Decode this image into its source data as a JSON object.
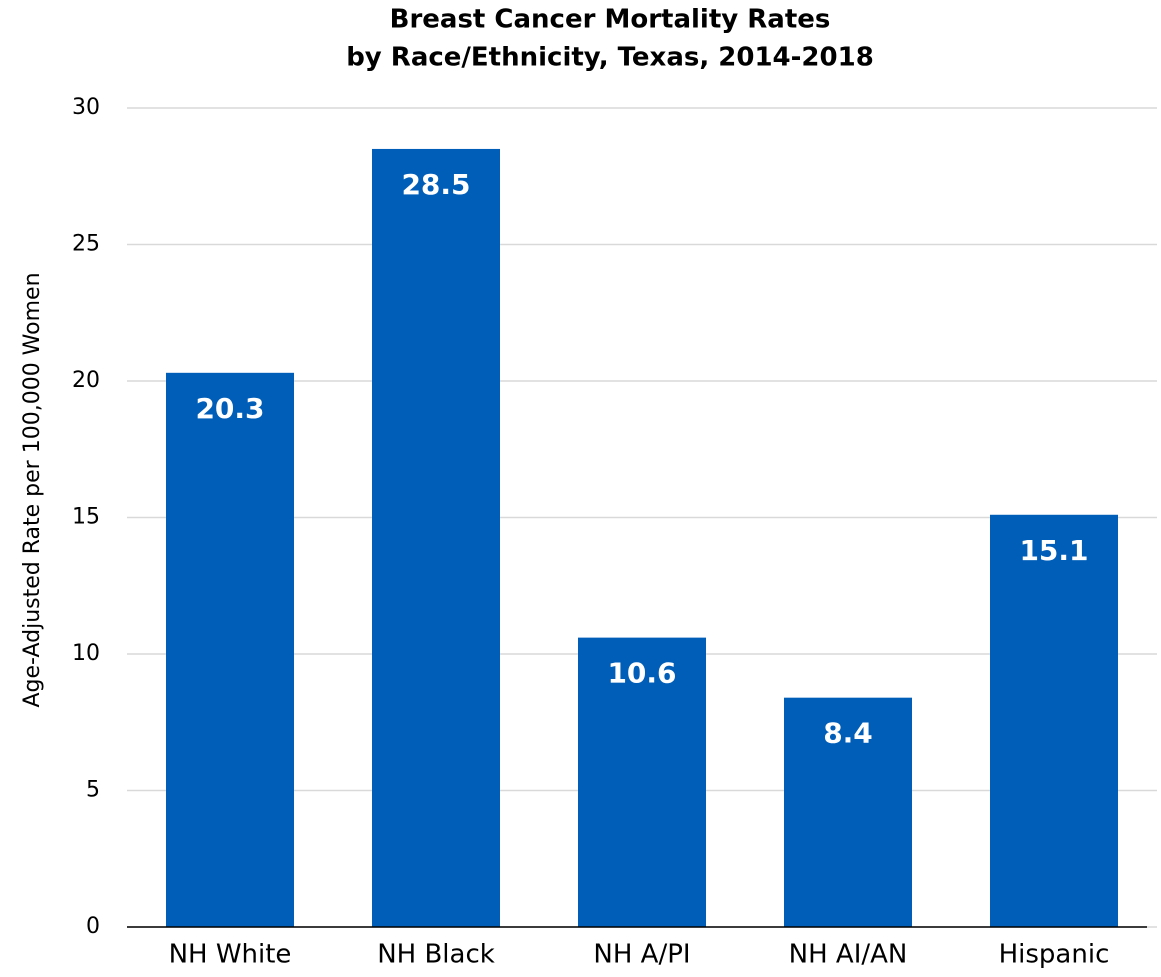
{
  "chart_data": {
    "type": "bar",
    "title": [
      "Breast Cancer Mortality Rates",
      "by Race/Ethnicity, Texas, 2014-2018"
    ],
    "y_label": "Age-Adjusted Rate per 100,000 Women",
    "categories": [
      "NH White",
      "NH Black",
      "NH A/PI",
      "NH AI/AN",
      "Hispanic"
    ],
    "values": [
      20.3,
      28.5,
      10.6,
      8.4,
      15.1
    ],
    "color": "#005eb8",
    "ylim": [
      0,
      30
    ],
    "yticks": [
      0,
      5,
      10,
      15,
      20,
      25,
      30
    ],
    "grid": true
  }
}
